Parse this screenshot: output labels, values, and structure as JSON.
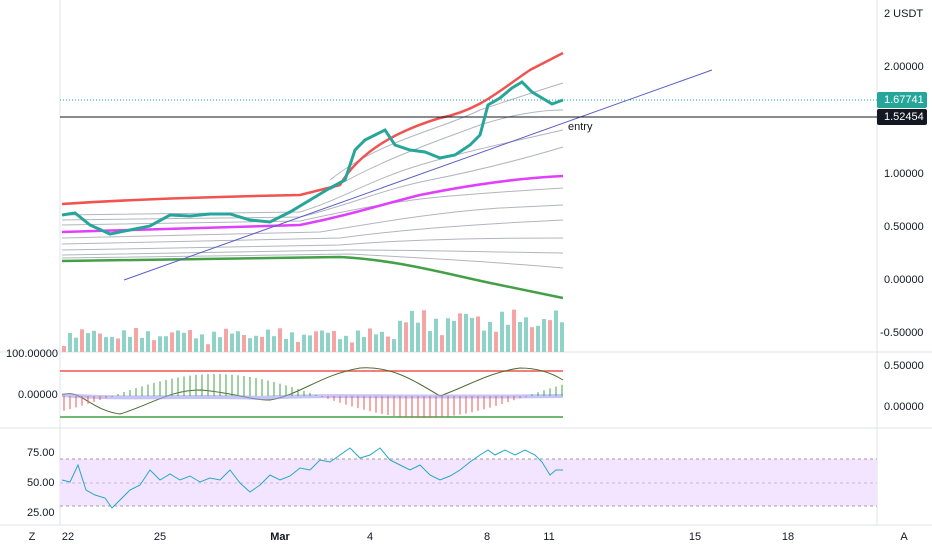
{
  "price_axis": {
    "unit": "2 USDT",
    "labels": [
      "2.00000",
      "1.00000",
      "0.50000",
      "0.00000",
      "-0.50000"
    ]
  },
  "price_tags": {
    "last": "1.67741",
    "entry_level": "1.52454"
  },
  "annotation": "entry",
  "macd_axis": {
    "left": [
      "100.00000",
      "0.00000"
    ],
    "right": [
      "0.50000",
      "0.00000"
    ]
  },
  "rsi_axis": [
    "75.00",
    "50.00",
    "25.00"
  ],
  "time_axis": [
    "22",
    "25",
    "Mar",
    "4",
    "8",
    "11",
    "15",
    "18"
  ],
  "footer": {
    "left": "Z",
    "right": "A"
  }
}
